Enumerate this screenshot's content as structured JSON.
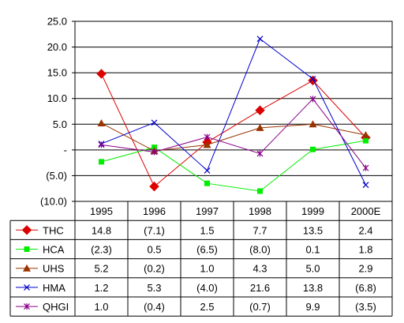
{
  "chart_data": {
    "type": "line",
    "categories": [
      "1995",
      "1996",
      "1997",
      "1998",
      "1999",
      "2000E"
    ],
    "ylim": [
      -10,
      25
    ],
    "y_ticks": [
      {
        "value": 25,
        "label": "25.0"
      },
      {
        "value": 20,
        "label": "20.0"
      },
      {
        "value": 15,
        "label": "15.0"
      },
      {
        "value": 10,
        "label": "10.0"
      },
      {
        "value": 5,
        "label": "5.0"
      },
      {
        "value": 0,
        "label": "-"
      },
      {
        "value": -5,
        "label": "(5.0)"
      },
      {
        "value": -10,
        "label": "(10.0)"
      }
    ],
    "grid": "horizontal",
    "legend": "data table below chart",
    "series": [
      {
        "name": "THC",
        "color": "#dd0000",
        "marker": "diamond",
        "values": [
          14.8,
          -7.1,
          1.5,
          7.7,
          13.5,
          2.4
        ],
        "labels": [
          "14.8",
          "(7.1)",
          "1.5",
          "7.7",
          "13.5",
          "2.4"
        ]
      },
      {
        "name": "HCA",
        "color": "#00ee00",
        "marker": "square",
        "values": [
          -2.3,
          0.5,
          -6.5,
          -8.0,
          0.1,
          1.8
        ],
        "labels": [
          "(2.3)",
          "0.5",
          "(6.5)",
          "(8.0)",
          "0.1",
          "1.8"
        ]
      },
      {
        "name": "UHS",
        "color": "#993300",
        "marker": "triangle",
        "values": [
          5.2,
          -0.2,
          1.0,
          4.3,
          5.0,
          2.9
        ],
        "labels": [
          "5.2",
          "(0.2)",
          "1.0",
          "4.3",
          "5.0",
          "2.9"
        ]
      },
      {
        "name": "HMA",
        "color": "#0000cc",
        "marker": "x",
        "values": [
          1.2,
          5.3,
          -4.0,
          21.6,
          13.8,
          -6.8
        ],
        "labels": [
          "1.2",
          "5.3",
          "(4.0)",
          "21.6",
          "13.8",
          "(6.8)"
        ]
      },
      {
        "name": "QHGI",
        "color": "#880088",
        "marker": "asterisk",
        "values": [
          1.0,
          -0.4,
          2.5,
          -0.7,
          9.9,
          -3.5
        ],
        "labels": [
          "1.0",
          "(0.4)",
          "2.5",
          "(0.7)",
          "9.9",
          "(3.5)"
        ]
      }
    ]
  }
}
